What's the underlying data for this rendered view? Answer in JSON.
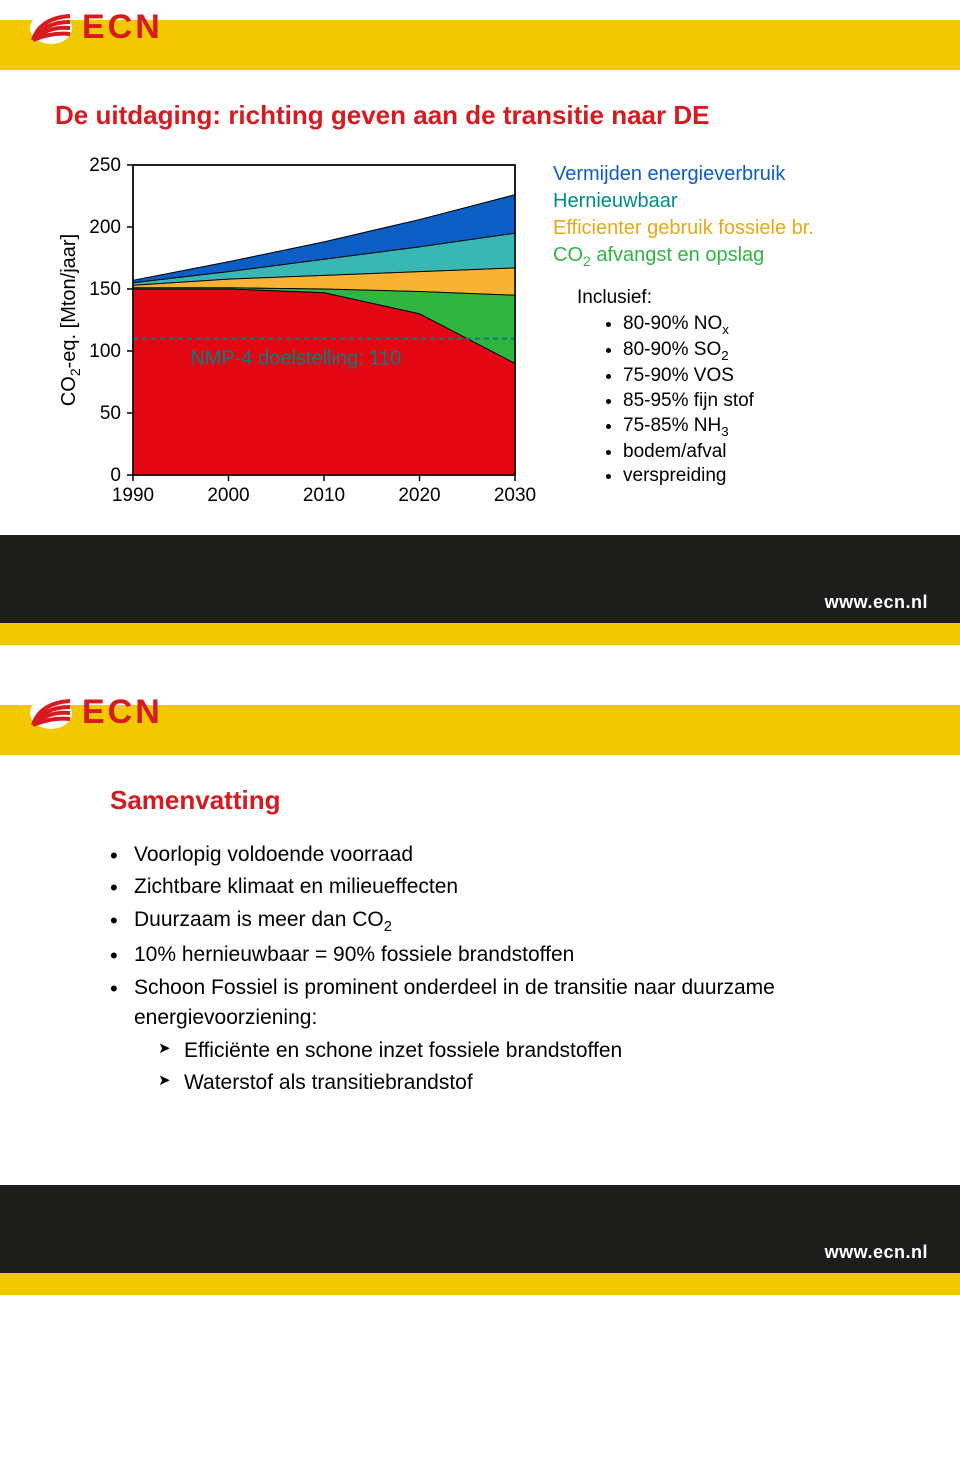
{
  "brand": {
    "name": "ECN",
    "url": "www.ecn.nl",
    "logo_color": "#d71920",
    "header_band_color": "#f2c900"
  },
  "slide1": {
    "title": "De uitdaging: richting geven aan de transitie naar DE",
    "chart": {
      "type": "area",
      "ylabel": "CO2-eq. [Mton/jaar]",
      "xticks": [
        1990,
        2000,
        2010,
        2020,
        2030
      ],
      "yticks": [
        0,
        50,
        100,
        150,
        200,
        250
      ],
      "xlim": [
        1990,
        2030
      ],
      "ylim": [
        0,
        250
      ],
      "series_order": [
        "red",
        "green",
        "yellow",
        "teal",
        "blue"
      ],
      "series": {
        "red": {
          "color": "#e30613",
          "pts": [
            [
              1990,
              150
            ],
            [
              2000,
              150
            ],
            [
              2010,
              147
            ],
            [
              2020,
              130
            ],
            [
              2030,
              90
            ]
          ]
        },
        "green": {
          "color": "#2fb642",
          "pts": [
            [
              1990,
              151
            ],
            [
              2000,
              151
            ],
            [
              2010,
              150
            ],
            [
              2020,
              148
            ],
            [
              2030,
              145
            ]
          ]
        },
        "yellow": {
          "color": "#f9b233",
          "pts": [
            [
              1990,
              153
            ],
            [
              2000,
              158
            ],
            [
              2010,
              161
            ],
            [
              2020,
              164
            ],
            [
              2030,
              167
            ]
          ]
        },
        "teal": {
          "color": "#39b7b5",
          "pts": [
            [
              1990,
              155
            ],
            [
              2000,
              164
            ],
            [
              2010,
              174
            ],
            [
              2020,
              184
            ],
            [
              2030,
              195
            ]
          ]
        },
        "blue": {
          "color": "#0b5fc4",
          "pts": [
            [
              1990,
              157
            ],
            [
              2000,
              172
            ],
            [
              2010,
              188
            ],
            [
              2020,
              206
            ],
            [
              2030,
              226
            ]
          ]
        }
      },
      "target_line": {
        "y": 110,
        "color": "#008080",
        "dash": "5,4",
        "label": "NMP-4 doelstelling: 110"
      },
      "axis_color": "#000000",
      "tick_fontsize": 19,
      "label_fontsize": 20
    },
    "legend": [
      {
        "text": "Vermijden energieverbruik",
        "color": "#0b5fc4"
      },
      {
        "text": "Hernieuwbaar",
        "color": "#008b8b"
      },
      {
        "text": "Efficienter gebruik fossiele br.",
        "color": "#e6a817"
      },
      {
        "text": "CO2 afvangst en opslag",
        "color": "#2fb642",
        "sub2": true
      }
    ],
    "inclusief": {
      "header": "Inclusief:",
      "items": [
        "80-90% NOx",
        "80-90% SO2",
        "75-90% VOS",
        "85-95% fijn stof",
        "75-85% NH3",
        "bodem/afval",
        "verspreiding"
      ]
    }
  },
  "slide2": {
    "title": "Samenvatting",
    "bullets": [
      "Voorlopig voldoende voorraad",
      "Zichtbare klimaat en milieueffecten",
      "Duurzaam is meer dan CO2",
      "10% hernieuwbaar = 90% fossiele brandstoffen",
      "Schoon Fossiel is prominent onderdeel in de transitie naar duurzame energievoorziening:"
    ],
    "sub_bullets": [
      "Efficiënte en schone inzet fossiele brandstoffen",
      "Waterstof als transitiebrandstof"
    ]
  }
}
